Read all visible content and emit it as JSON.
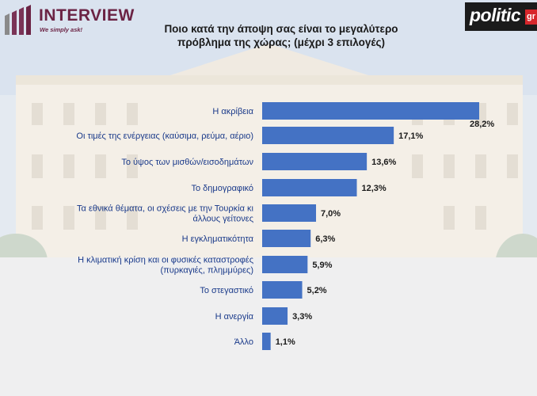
{
  "logos": {
    "left_brand": "INTERVIEW",
    "left_tagline": "We simply ask!",
    "right_brand": "politic",
    "right_suffix": "gr"
  },
  "colors": {
    "bar": "#4472c4",
    "label": "#1a3a8a",
    "brand_maroon": "#6b2344"
  },
  "chart_data": {
    "type": "bar",
    "orientation": "horizontal",
    "title": "Ποιο κατά την άποψη σας είναι το μεγαλύτερο πρόβλημα της χώρας; (μέχρι 3 επιλογές)",
    "categories": [
      [
        "Η ακρίβεια"
      ],
      [
        "Οι τιμές της ενέργειας (καύσιμα, ρεύμα, αέριο)"
      ],
      [
        "Το ύψος των μισθών/εισοδημάτων"
      ],
      [
        "Το δημογραφικό"
      ],
      [
        "Τα εθνικά θέματα, οι σχέσεις με την Τουρκία κι",
        "άλλους γείτονες"
      ],
      [
        "Η εγκληματικότητα"
      ],
      [
        "Η κλιματική κρίση και οι φυσικές καταστροφές",
        "(πυρκαγιές, πλημμύρες)"
      ],
      [
        "Το στεγαστικό"
      ],
      [
        "Η ανεργία"
      ],
      [
        "Άλλο"
      ]
    ],
    "values": [
      28.2,
      17.1,
      13.6,
      12.3,
      7.0,
      6.3,
      5.9,
      5.2,
      3.3,
      1.1
    ],
    "value_labels": [
      "28,2%",
      "17,1%",
      "13,6%",
      "12,3%",
      "7,0%",
      "6,3%",
      "5,9%",
      "5,2%",
      "3,3%",
      "1,1%"
    ],
    "xlim": [
      0,
      30
    ],
    "grid": false,
    "legend": "none"
  }
}
